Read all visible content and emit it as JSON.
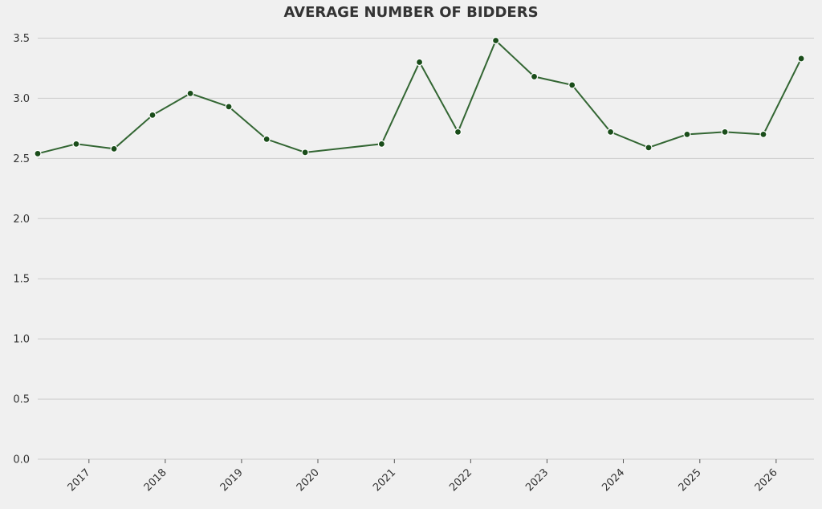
{
  "chart_data": {
    "type": "line",
    "title": "AVERAGE NUMBER OF BIDDERS",
    "xlabel": "",
    "ylabel": "",
    "ylim": [
      0,
      3.75
    ],
    "xlim": [
      "2016-05-01",
      "2026-07-01"
    ],
    "y_ticks": [
      0.0,
      0.5,
      1.0,
      1.5,
      2.0,
      2.5,
      3.0,
      3.5
    ],
    "y_tick_labels": [
      "0.0",
      "0.5",
      "1.0",
      "1.5",
      "2.0",
      "2.5",
      "3.0",
      "3.5"
    ],
    "x_ticks": [
      "2017-01-01",
      "2018-01-01",
      "2019-01-01",
      "2020-01-01",
      "2021-01-01",
      "2022-01-01",
      "2023-01-01",
      "2024-01-01",
      "2025-01-01",
      "2026-01-01"
    ],
    "x_tick_labels": [
      "2017",
      "2018",
      "2019",
      "2020",
      "2021",
      "2022",
      "2023",
      "2024",
      "2025",
      "2026"
    ],
    "grid": "horizontal",
    "colors": {
      "line": "#336633",
      "marker": "#1a4d1a"
    },
    "series": [
      {
        "x": [
          "2016-05-01",
          "2016-11-01",
          "2017-05-01",
          "2017-11-01",
          "2018-05-01",
          "2018-11-01",
          "2019-05-01",
          "2019-11-01",
          "2020-11-01",
          "2021-05-01",
          "2021-11-01",
          "2022-05-01",
          "2022-11-01",
          "2023-05-01",
          "2023-11-01",
          "2024-05-01",
          "2024-11-01",
          "2025-05-01",
          "2025-11-01",
          "2026-05-01"
        ],
        "values": [
          2.54,
          2.62,
          2.58,
          2.86,
          3.04,
          2.93,
          2.66,
          2.55,
          2.62,
          3.3,
          2.72,
          3.48,
          3.18,
          3.11,
          2.72,
          2.59,
          2.7,
          2.72,
          2.7,
          3.33
        ]
      }
    ]
  }
}
